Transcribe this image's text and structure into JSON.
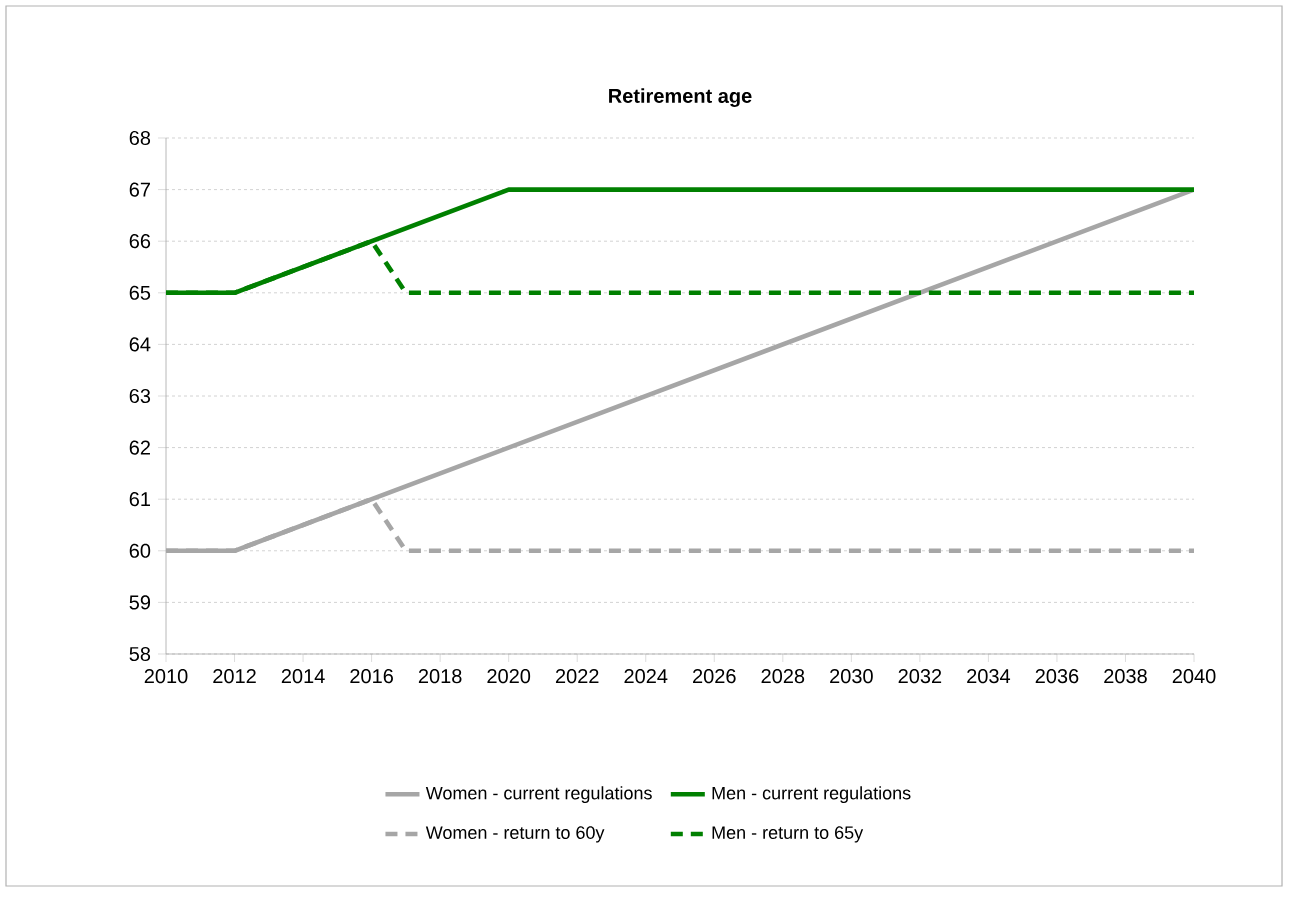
{
  "chart_data": {
    "type": "line",
    "title": "Retirement age",
    "series": [
      {
        "name": "Women - current regulations",
        "color": "#a6a6a6",
        "line_style": "solid",
        "x": [
          2010,
          2012,
          2040
        ],
        "values": [
          60,
          60,
          67
        ]
      },
      {
        "name": "Men - current regulations",
        "color": "#008000",
        "line_style": "solid",
        "x": [
          2010,
          2012,
          2020,
          2040
        ],
        "values": [
          65,
          65,
          67,
          67
        ]
      },
      {
        "name": "Women - return to 60y",
        "color": "#a6a6a6",
        "line_style": "dashed",
        "x": [
          2010,
          2012,
          2016,
          2017,
          2040
        ],
        "values": [
          60,
          60,
          61,
          60,
          60
        ]
      },
      {
        "name": "Men - return to 65y",
        "color": "#008000",
        "line_style": "dashed",
        "x": [
          2010,
          2012,
          2016,
          2017,
          2040
        ],
        "values": [
          65,
          65,
          66,
          65,
          65
        ]
      }
    ],
    "xlim": [
      2010,
      2040
    ],
    "xticks": [
      2010,
      2012,
      2014,
      2016,
      2018,
      2020,
      2022,
      2024,
      2026,
      2028,
      2030,
      2032,
      2034,
      2036,
      2038,
      2040
    ],
    "ylim": [
      58,
      68
    ],
    "yticks": [
      58,
      59,
      60,
      61,
      62,
      63,
      64,
      65,
      66,
      67,
      68
    ],
    "grid": "y",
    "legend": "bottom",
    "marker": "none"
  }
}
